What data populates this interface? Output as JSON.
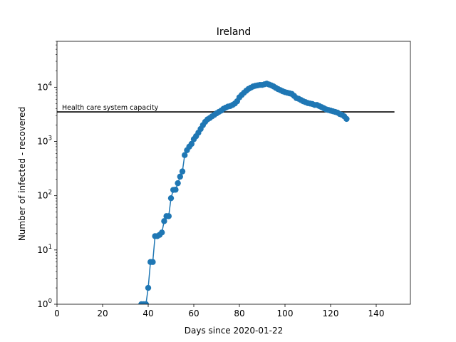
{
  "chart_data": {
    "type": "line",
    "title": "Ireland",
    "xlabel": "Days since 2020-01-22",
    "ylabel": "Number of infected - recovered",
    "xlim": [
      0,
      155
    ],
    "ylim": [
      1,
      70000
    ],
    "yscale": "log",
    "xticks": [
      0,
      20,
      40,
      60,
      80,
      100,
      120,
      140
    ],
    "yticks": [
      {
        "value": 1,
        "base": "10",
        "exp": "0"
      },
      {
        "value": 10,
        "base": "10",
        "exp": "1"
      },
      {
        "value": 100,
        "base": "10",
        "exp": "2"
      },
      {
        "value": 1000,
        "base": "10",
        "exp": "3"
      },
      {
        "value": 10000,
        "base": "10",
        "exp": "4"
      }
    ],
    "series": [
      {
        "name": "Infected - recovered",
        "color": "#1f77b4",
        "x": [
          37,
          38,
          39,
          40,
          41,
          42,
          43,
          44,
          45,
          46,
          47,
          48,
          49,
          50,
          51,
          52,
          53,
          54,
          55,
          56,
          57,
          58,
          59,
          60,
          61,
          62,
          63,
          64,
          65,
          66,
          67,
          68,
          69,
          70,
          71,
          72,
          73,
          74,
          75,
          76,
          77,
          78,
          79,
          80,
          81,
          82,
          83,
          84,
          85,
          86,
          87,
          88,
          89,
          90,
          91,
          92,
          93,
          94,
          95,
          96,
          97,
          98,
          99,
          100,
          101,
          102,
          103,
          104,
          105,
          106,
          107,
          108,
          109,
          110,
          111,
          112,
          113,
          114,
          115,
          116,
          117,
          118,
          119,
          120,
          121,
          122,
          123,
          124,
          125,
          126,
          127
        ],
        "y": [
          1,
          1,
          1,
          2,
          6,
          6,
          18,
          18,
          19,
          21,
          34,
          42,
          42,
          90,
          128,
          129,
          170,
          225,
          280,
          560,
          690,
          800,
          900,
          1100,
          1250,
          1450,
          1700,
          2000,
          2300,
          2550,
          2700,
          2900,
          3100,
          3300,
          3500,
          3700,
          4000,
          4200,
          4400,
          4500,
          4700,
          5000,
          5500,
          6500,
          7200,
          7900,
          8600,
          9300,
          9800,
          10300,
          10600,
          10800,
          11000,
          11000,
          11300,
          11600,
          11200,
          10800,
          10300,
          9700,
          9200,
          8800,
          8400,
          8100,
          7900,
          7700,
          7500,
          6900,
          6300,
          6100,
          5800,
          5500,
          5300,
          5100,
          5000,
          4900,
          4700,
          4700,
          4500,
          4300,
          4100,
          3900,
          3800,
          3700,
          3600,
          3500,
          3400,
          3200,
          3100,
          2900,
          2600
        ]
      }
    ],
    "reference_line": {
      "label": "Health care system capacity",
      "y": 3500,
      "x_start": 0,
      "x_end": 148,
      "color": "#000000"
    }
  }
}
